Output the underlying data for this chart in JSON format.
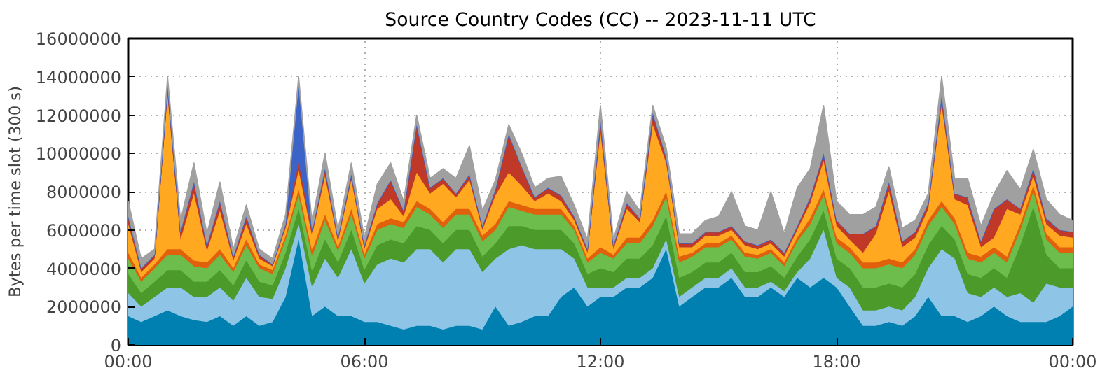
{
  "chart_data": {
    "type": "area",
    "stacked": true,
    "title": "Source Country Codes (CC) -- 2023-11-11 UTC",
    "ylabel": "Bytes per time slot (300 s)",
    "x": [
      0,
      0.33,
      0.67,
      1,
      1.33,
      1.67,
      2,
      2.33,
      2.67,
      3,
      3.33,
      3.67,
      4,
      4.33,
      4.67,
      5,
      5.33,
      5.67,
      6,
      6.33,
      6.67,
      7,
      7.33,
      7.67,
      8,
      8.33,
      8.67,
      9,
      9.33,
      9.67,
      10,
      10.33,
      10.67,
      11,
      11.33,
      11.67,
      12,
      12.33,
      12.67,
      13,
      13.33,
      13.67,
      14,
      14.33,
      14.67,
      15,
      15.33,
      15.67,
      16,
      16.33,
      16.67,
      17,
      17.33,
      17.67,
      18,
      18.33,
      18.67,
      19,
      19.33,
      19.67,
      20,
      20.33,
      20.67,
      21,
      21.33,
      21.67,
      22,
      22.33,
      22.67,
      23,
      23.33,
      23.67,
      24
    ],
    "xlim": [
      0,
      24
    ],
    "xticks": [
      {
        "value": 0,
        "label": "00:00"
      },
      {
        "value": 6,
        "label": "06:00"
      },
      {
        "value": 12,
        "label": "12:00"
      },
      {
        "value": 18,
        "label": "18:00"
      },
      {
        "value": 24,
        "label": "00:00"
      }
    ],
    "ylim": [
      0,
      16000000
    ],
    "yticks": [
      0,
      2000000,
      4000000,
      6000000,
      8000000,
      10000000,
      12000000,
      14000000,
      16000000
    ],
    "grid": true,
    "series": [
      {
        "color": "#0080b0",
        "values": [
          1500000.0,
          1200000.0,
          1500000.0,
          1800000.0,
          1500000.0,
          1300000.0,
          1200000.0,
          1500000.0,
          1000000.0,
          1500000.0,
          1000000.0,
          1200000.0,
          2500000.0,
          5500000.0,
          1500000.0,
          2000000.0,
          1500000.0,
          1500000.0,
          1200000.0,
          1200000.0,
          1000000.0,
          800000.0,
          1000000.0,
          1000000.0,
          800000.0,
          1000000.0,
          1000000.0,
          800000.0,
          2000000.0,
          1000000.0,
          1200000.0,
          1500000.0,
          1500000.0,
          2500000.0,
          3000000.0,
          2000000.0,
          2500000.0,
          2500000.0,
          3000000.0,
          3000000.0,
          3500000.0,
          5000000.0,
          2000000.0,
          2500000.0,
          3000000.0,
          3000000.0,
          3500000.0,
          2500000.0,
          2500000.0,
          3000000.0,
          2500000.0,
          3500000.0,
          3000000.0,
          3500000.0,
          3000000.0,
          2000000.0,
          1000000.0,
          1000000.0,
          1200000.0,
          1000000.0,
          1500000.0,
          2500000.0,
          1500000.0,
          1500000.0,
          1200000.0,
          1500000.0,
          2000000.0,
          1500000.0,
          1200000.0,
          1200000.0,
          1200000.0,
          1500000.0,
          2000000.0
        ]
      },
      {
        "color": "#8ec5e6",
        "values": [
          1200000.0,
          800000.0,
          1000000.0,
          1200000.0,
          1500000.0,
          1200000.0,
          1300000.0,
          1500000.0,
          1300000.0,
          2000000.0,
          1500000.0,
          1200000.0,
          1500000.0,
          800000.0,
          1500000.0,
          2500000.0,
          2000000.0,
          3500000.0,
          2000000.0,
          3000000.0,
          3500000.0,
          3500000.0,
          4000000.0,
          4000000.0,
          3500000.0,
          4000000.0,
          4000000.0,
          3000000.0,
          2500000.0,
          4000000.0,
          4000000.0,
          3500000.0,
          3500000.0,
          2500000.0,
          1500000.0,
          1000000.0,
          500000.0,
          500000.0,
          500000.0,
          500000.0,
          500000.0,
          500000.0,
          500000.0,
          500000.0,
          500000.0,
          500000.0,
          500000.0,
          500000.0,
          500000.0,
          300000.0,
          300000.0,
          300000.0,
          1500000.0,
          2500000.0,
          500000.0,
          1000000.0,
          800000.0,
          800000.0,
          800000.0,
          800000.0,
          1000000.0,
          1500000.0,
          3500000.0,
          3000000.0,
          1500000.0,
          1000000.0,
          1000000.0,
          1000000.0,
          1500000.0,
          1000000.0,
          2000000.0,
          1500000.0,
          1000000.0
        ]
      },
      {
        "color": "#4c9a2a",
        "values": [
          1000000.0,
          700000.0,
          800000.0,
          900000.0,
          900000.0,
          800000.0,
          800000.0,
          900000.0,
          800000.0,
          900000.0,
          800000.0,
          700000.0,
          800000.0,
          800000.0,
          800000.0,
          1000000.0,
          800000.0,
          1000000.0,
          700000.0,
          1000000.0,
          1000000.0,
          1000000.0,
          1200000.0,
          1000000.0,
          1000000.0,
          1000000.0,
          1000000.0,
          800000.0,
          800000.0,
          1200000.0,
          1000000.0,
          1000000.0,
          1000000.0,
          1000000.0,
          800000.0,
          700000.0,
          1000000.0,
          800000.0,
          1000000.0,
          1000000.0,
          1200000.0,
          1200000.0,
          1000000.0,
          800000.0,
          800000.0,
          800000.0,
          800000.0,
          800000.0,
          800000.0,
          800000.0,
          700000.0,
          800000.0,
          1000000.0,
          1000000.0,
          1000000.0,
          1000000.0,
          1200000.0,
          1200000.0,
          1200000.0,
          1200000.0,
          1200000.0,
          1200000.0,
          1200000.0,
          1000000.0,
          1000000.0,
          1000000.0,
          1000000.0,
          1000000.0,
          2500000.0,
          5000000.0,
          1500000.0,
          1000000.0,
          1000000.0
        ]
      },
      {
        "color": "#6cbd4c",
        "values": [
          800000.0,
          600000.0,
          700000.0,
          800000.0,
          800000.0,
          800000.0,
          700000.0,
          800000.0,
          700000.0,
          800000.0,
          700000.0,
          600000.0,
          700000.0,
          700000.0,
          800000.0,
          1000000.0,
          600000.0,
          800000.0,
          600000.0,
          800000.0,
          800000.0,
          800000.0,
          1000000.0,
          800000.0,
          800000.0,
          800000.0,
          800000.0,
          800000.0,
          700000.0,
          1000000.0,
          800000.0,
          800000.0,
          800000.0,
          800000.0,
          700000.0,
          600000.0,
          800000.0,
          700000.0,
          800000.0,
          800000.0,
          1000000.0,
          1000000.0,
          800000.0,
          800000.0,
          800000.0,
          800000.0,
          700000.0,
          800000.0,
          700000.0,
          700000.0,
          600000.0,
          800000.0,
          800000.0,
          800000.0,
          800000.0,
          800000.0,
          1000000.0,
          1000000.0,
          1000000.0,
          1000000.0,
          1000000.0,
          1000000.0,
          1000000.0,
          800000.0,
          800000.0,
          800000.0,
          800000.0,
          800000.0,
          800000.0,
          800000.0,
          800000.0,
          800000.0,
          800000.0
        ]
      },
      {
        "color": "#e0600c",
        "values": [
          300000.0,
          200000.0,
          200000.0,
          300000.0,
          300000.0,
          300000.0,
          300000.0,
          300000.0,
          200000.0,
          300000.0,
          200000.0,
          200000.0,
          200000.0,
          300000.0,
          300000.0,
          300000.0,
          200000.0,
          300000.0,
          200000.0,
          300000.0,
          300000.0,
          300000.0,
          300000.0,
          300000.0,
          300000.0,
          300000.0,
          300000.0,
          300000.0,
          300000.0,
          300000.0,
          300000.0,
          300000.0,
          300000.0,
          300000.0,
          200000.0,
          200000.0,
          300000.0,
          200000.0,
          300000.0,
          300000.0,
          300000.0,
          300000.0,
          300000.0,
          200000.0,
          200000.0,
          200000.0,
          200000.0,
          200000.0,
          200000.0,
          200000.0,
          200000.0,
          200000.0,
          300000.0,
          300000.0,
          300000.0,
          300000.0,
          300000.0,
          300000.0,
          300000.0,
          300000.0,
          300000.0,
          300000.0,
          300000.0,
          300000.0,
          300000.0,
          300000.0,
          300000.0,
          300000.0,
          300000.0,
          300000.0,
          300000.0,
          300000.0,
          300000.0
        ]
      },
      {
        "color": "#ffa820",
        "values": [
          1500000.0,
          300000.0,
          300000.0,
          8000000.0,
          500000.0,
          3500000.0,
          600000.0,
          2000000.0,
          400000.0,
          800000.0,
          300000.0,
          200000.0,
          400000.0,
          1000000.0,
          800000.0,
          2000000.0,
          300000.0,
          1500000.0,
          300000.0,
          800000.0,
          1000000.0,
          300000.0,
          1500000.0,
          800000.0,
          2000000.0,
          600000.0,
          1500000.0,
          300000.0,
          1500000.0,
          1500000.0,
          1000000.0,
          400000.0,
          800000.0,
          400000.0,
          300000.0,
          300000.0,
          6000000.0,
          300000.0,
          1500000.0,
          800000.0,
          5000000.0,
          1500000.0,
          500000.0,
          300000.0,
          400000.0,
          400000.0,
          300000.0,
          400000.0,
          300000.0,
          300000.0,
          300000.0,
          400000.0,
          800000.0,
          1500000.0,
          600000.0,
          400000.0,
          500000.0,
          1500000.0,
          3500000.0,
          800000.0,
          600000.0,
          600000.0,
          5000000.0,
          1000000.0,
          2500000.0,
          500000.0,
          500000.0,
          2500000.0,
          500000.0,
          500000.0,
          500000.0,
          600000.0,
          500000.0
        ]
      },
      {
        "color": "#c03828",
        "values": [
          400000.0,
          200000.0,
          200000.0,
          500000.0,
          400000.0,
          600000.0,
          300000.0,
          500000.0,
          200000.0,
          400000.0,
          200000.0,
          100000.0,
          200000.0,
          400000.0,
          200000.0,
          400000.0,
          200000.0,
          300000.0,
          200000.0,
          300000.0,
          1000000.0,
          300000.0,
          2500000.0,
          300000.0,
          300000.0,
          200000.0,
          300000.0,
          200000.0,
          300000.0,
          2000000.0,
          1000000.0,
          200000.0,
          300000.0,
          300000.0,
          200000.0,
          200000.0,
          600000.0,
          200000.0,
          300000.0,
          200000.0,
          600000.0,
          300000.0,
          200000.0,
          200000.0,
          200000.0,
          200000.0,
          200000.0,
          200000.0,
          200000.0,
          200000.0,
          200000.0,
          200000.0,
          300000.0,
          400000.0,
          300000.0,
          300000.0,
          1000000.0,
          400000.0,
          500000.0,
          300000.0,
          300000.0,
          300000.0,
          500000.0,
          300000.0,
          400000.0,
          300000.0,
          1500000.0,
          500000.0,
          300000.0,
          400000.0,
          300000.0,
          300000.0,
          300000.0
        ]
      },
      {
        "color": "#3c64c8",
        "values": [
          0,
          0,
          0,
          0,
          0,
          0,
          0,
          0,
          0,
          0,
          0,
          0,
          0,
          4000000.0,
          0,
          0,
          0,
          0,
          0,
          0,
          0,
          0,
          0,
          0,
          0,
          0,
          0,
          0,
          0,
          0,
          0,
          0,
          0,
          0,
          0,
          0,
          0,
          0,
          0,
          0,
          0,
          0,
          0,
          0,
          0,
          0,
          0,
          0,
          0,
          0,
          0,
          0,
          0,
          0,
          0,
          0,
          0,
          0,
          0,
          0,
          0,
          0,
          0,
          0,
          0,
          0,
          0,
          0,
          0,
          0,
          0,
          0,
          0
        ]
      },
      {
        "color": "#a0a0a0",
        "values": [
          800000.0,
          500000.0,
          300000.0,
          500000.0,
          600000.0,
          1000000.0,
          600000.0,
          1000000.0,
          400000.0,
          600000.0,
          300000.0,
          300000.0,
          500000.0,
          500000.0,
          500000.0,
          800000.0,
          400000.0,
          600000.0,
          400000.0,
          1000000.0,
          900000.0,
          500000.0,
          500000.0,
          500000.0,
          500000.0,
          800000.0,
          1500000.0,
          800000.0,
          500000.0,
          500000.0,
          700000.0,
          500000.0,
          500000.0,
          1000000.0,
          600000.0,
          500000.0,
          800000.0,
          300000.0,
          600000.0,
          400000.0,
          400000.0,
          500000.0,
          500000.0,
          500000.0,
          600000.0,
          800000.0,
          1800000.0,
          800000.0,
          800000.0,
          2500000.0,
          1000000.0,
          2000000.0,
          1500000.0,
          2500000.0,
          1000000.0,
          1000000.0,
          1000000.0,
          1000000.0,
          800000.0,
          700000.0,
          600000.0,
          500000.0,
          1000000.0,
          800000.0,
          1000000.0,
          800000.0,
          800000.0,
          1500000.0,
          1000000.0,
          1000000.0,
          1000000.0,
          800000.0,
          600000.0
        ]
      }
    ]
  }
}
